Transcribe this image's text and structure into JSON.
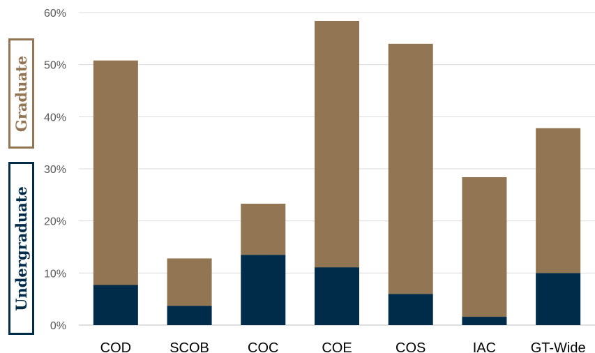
{
  "chart_data": {
    "type": "bar",
    "stacked": true,
    "title": "",
    "xlabel": "",
    "ylabel": "",
    "ylim": [
      0,
      60
    ],
    "yticks": [
      "0%",
      "10%",
      "20%",
      "30%",
      "40%",
      "50%",
      "60%"
    ],
    "categories": [
      "COD",
      "SCOB",
      "COC",
      "COE",
      "COS",
      "IAC",
      "GT-Wide"
    ],
    "series": [
      {
        "name": "Undergraduate",
        "color": "#002b49",
        "values": [
          7.7,
          3.7,
          13.5,
          11.1,
          6.0,
          1.6,
          10.0
        ]
      },
      {
        "name": "Graduate",
        "color": "#927553",
        "values": [
          43.1,
          9.1,
          9.8,
          47.3,
          48.0,
          26.8,
          27.8
        ]
      }
    ],
    "grid": true,
    "gridline_color": "#d9d9d9",
    "legend": "left vertical boxes"
  },
  "legend_labels": {
    "graduate": "Graduate",
    "undergraduate": "Undergraduate"
  }
}
